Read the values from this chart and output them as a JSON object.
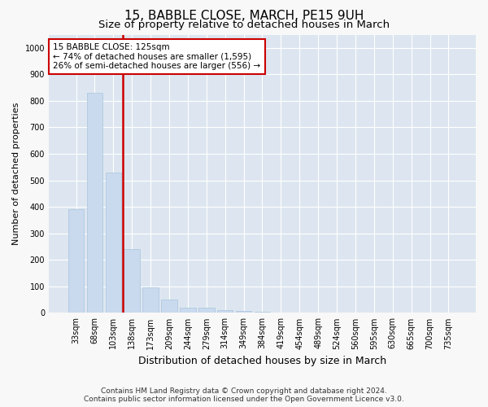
{
  "title": "15, BABBLE CLOSE, MARCH, PE15 9UH",
  "subtitle": "Size of property relative to detached houses in March",
  "xlabel": "Distribution of detached houses by size in March",
  "ylabel": "Number of detached properties",
  "categories": [
    "33sqm",
    "68sqm",
    "103sqm",
    "138sqm",
    "173sqm",
    "209sqm",
    "244sqm",
    "279sqm",
    "314sqm",
    "349sqm",
    "384sqm",
    "419sqm",
    "454sqm",
    "489sqm",
    "524sqm",
    "560sqm",
    "595sqm",
    "630sqm",
    "665sqm",
    "700sqm",
    "735sqm"
  ],
  "values": [
    390,
    830,
    530,
    240,
    95,
    50,
    20,
    20,
    12,
    7,
    5,
    2,
    1,
    0,
    0,
    0,
    0,
    0,
    0,
    0,
    0
  ],
  "bar_color": "#c9d9ee",
  "bar_edge_color": "#aac4de",
  "red_line_x": 2.5,
  "red_line_color": "#cc0000",
  "ylim": [
    0,
    1050
  ],
  "yticks": [
    0,
    100,
    200,
    300,
    400,
    500,
    600,
    700,
    800,
    900,
    1000
  ],
  "annotation_text": "15 BABBLE CLOSE: 125sqm\n← 74% of detached houses are smaller (1,595)\n26% of semi-detached houses are larger (556) →",
  "annotation_box_facecolor": "#ffffff",
  "annotation_box_edgecolor": "#cc0000",
  "footer_line1": "Contains HM Land Registry data © Crown copyright and database right 2024.",
  "footer_line2": "Contains public sector information licensed under the Open Government Licence v3.0.",
  "fig_facecolor": "#f8f8f8",
  "ax_facecolor": "#dde6f0",
  "grid_color": "#ffffff",
  "title_fontsize": 11,
  "subtitle_fontsize": 9.5,
  "xlabel_fontsize": 9,
  "ylabel_fontsize": 8,
  "tick_fontsize": 7,
  "annotation_fontsize": 7.5,
  "footer_fontsize": 6.5
}
